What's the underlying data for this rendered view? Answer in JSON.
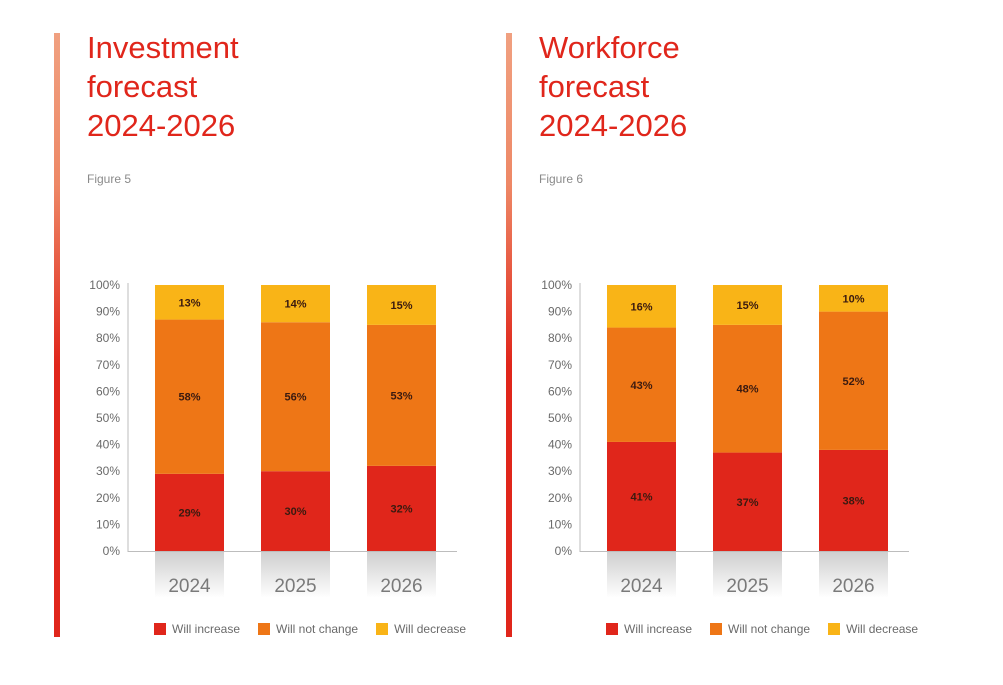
{
  "palette": {
    "increase": "#e0261b",
    "no_change": "#ee7616",
    "decrease": "#f9b417",
    "accent": "#e0261b"
  },
  "panels": [
    {
      "title_lines": [
        "Investment",
        "forecast",
        "2024-2026"
      ],
      "figure_label": "Figure 5"
    },
    {
      "title_lines": [
        "Workforce",
        "forecast",
        "2024-2026"
      ],
      "figure_label": "Figure 6"
    }
  ],
  "legend": {
    "increase": "Will increase",
    "no_change": "Will not change",
    "decrease": "Will decrease"
  },
  "chart_data": [
    {
      "type": "bar",
      "stacked": true,
      "categories": [
        "2024",
        "2025",
        "2026"
      ],
      "series": [
        {
          "name": "Will increase",
          "values": [
            29,
            30,
            32
          ],
          "labels": [
            "29%",
            "30%",
            "32%"
          ]
        },
        {
          "name": "Will not change",
          "values": [
            58,
            56,
            53
          ],
          "labels": [
            "58%",
            "56%",
            "53%"
          ]
        },
        {
          "name": "Will decrease",
          "values": [
            13,
            14,
            15
          ],
          "labels": [
            "13%",
            "14%",
            "15%"
          ]
        }
      ],
      "ylim": [
        0,
        100
      ],
      "yticks": [
        "0%",
        "10%",
        "20%",
        "30%",
        "40%",
        "50%",
        "60%",
        "70%",
        "80%",
        "90%",
        "100%"
      ],
      "grid": false,
      "legend_position": "bottom"
    },
    {
      "type": "bar",
      "stacked": true,
      "categories": [
        "2024",
        "2025",
        "2026"
      ],
      "series": [
        {
          "name": "Will increase",
          "values": [
            41,
            37,
            38
          ],
          "labels": [
            "41%",
            "37%",
            "38%"
          ]
        },
        {
          "name": "Will not change",
          "values": [
            43,
            48,
            52
          ],
          "labels": [
            "43%",
            "48%",
            "52%"
          ]
        },
        {
          "name": "Will decrease",
          "values": [
            16,
            15,
            10
          ],
          "labels": [
            "16%",
            "15%",
            "10%"
          ]
        }
      ],
      "ylim": [
        0,
        100
      ],
      "yticks": [
        "0%",
        "10%",
        "20%",
        "30%",
        "40%",
        "50%",
        "60%",
        "70%",
        "80%",
        "90%",
        "100%"
      ],
      "grid": false,
      "legend_position": "bottom"
    }
  ]
}
